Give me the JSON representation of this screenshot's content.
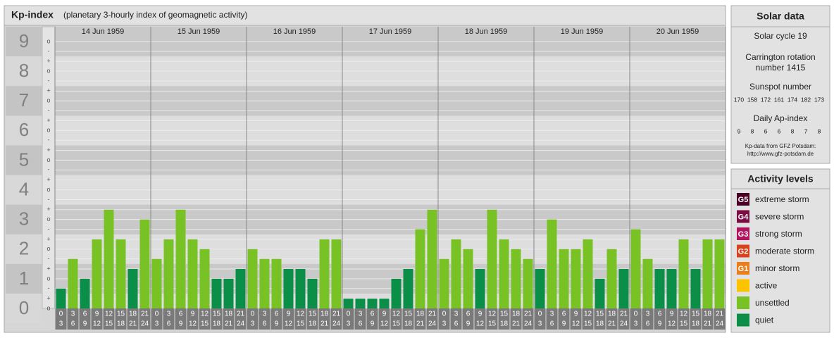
{
  "chart_data": {
    "type": "bar",
    "title": "Kp-index",
    "subtitle": "(planetary 3-hourly index of geomagnetic activity)",
    "ylim": [
      0,
      9.5
    ],
    "yticks": [
      0,
      1,
      2,
      3,
      4,
      5,
      6,
      7,
      8,
      9
    ],
    "minor_yticks": [
      {
        "value": 0,
        "label": "o"
      },
      {
        "value": 0.33,
        "label": "+"
      },
      {
        "value": 0.67,
        "label": "-"
      },
      {
        "value": 1,
        "label": "o"
      },
      {
        "value": 1.33,
        "label": "+"
      },
      {
        "value": 1.67,
        "label": "-"
      },
      {
        "value": 2,
        "label": "o"
      },
      {
        "value": 2.33,
        "label": "+"
      },
      {
        "value": 2.67,
        "label": "-"
      },
      {
        "value": 3,
        "label": "o"
      },
      {
        "value": 3.33,
        "label": "+"
      },
      {
        "value": 3.67,
        "label": "-"
      },
      {
        "value": 4,
        "label": "o"
      },
      {
        "value": 4.33,
        "label": "+"
      },
      {
        "value": 4.67,
        "label": "-"
      },
      {
        "value": 5,
        "label": "o"
      },
      {
        "value": 5.33,
        "label": "+"
      },
      {
        "value": 5.67,
        "label": "-"
      },
      {
        "value": 6,
        "label": "o"
      },
      {
        "value": 6.33,
        "label": "+"
      },
      {
        "value": 6.67,
        "label": "-"
      },
      {
        "value": 7,
        "label": "o"
      },
      {
        "value": 7.33,
        "label": "+"
      },
      {
        "value": 7.67,
        "label": "-"
      },
      {
        "value": 8,
        "label": "o"
      },
      {
        "value": 8.33,
        "label": "+"
      },
      {
        "value": 8.67,
        "label": "-"
      },
      {
        "value": 9,
        "label": "o"
      }
    ],
    "slots": [
      {
        "start": "0",
        "end": "3"
      },
      {
        "start": "3",
        "end": "6"
      },
      {
        "start": "6",
        "end": "9"
      },
      {
        "start": "9",
        "end": "12"
      },
      {
        "start": "12",
        "end": "15"
      },
      {
        "start": "15",
        "end": "18"
      },
      {
        "start": "18",
        "end": "21"
      },
      {
        "start": "21",
        "end": "24"
      }
    ],
    "days": [
      {
        "date": "14 Jun 1959",
        "values": [
          0.67,
          1.67,
          1,
          2.33,
          3.33,
          2.33,
          1.33,
          3
        ],
        "colors": [
          "#0b8f48",
          "#78c225",
          "#0b8f48",
          "#78c225",
          "#78c225",
          "#78c225",
          "#0b8f48",
          "#78c225"
        ]
      },
      {
        "date": "15 Jun 1959",
        "values": [
          1.67,
          2.33,
          3.33,
          2.33,
          2,
          1,
          1,
          1.33
        ],
        "colors": [
          "#78c225",
          "#78c225",
          "#78c225",
          "#78c225",
          "#78c225",
          "#0b8f48",
          "#0b8f48",
          "#0b8f48"
        ]
      },
      {
        "date": "16 Jun 1959",
        "values": [
          2,
          1.67,
          1.67,
          1.33,
          1.33,
          1,
          2.33,
          2.33
        ],
        "colors": [
          "#78c225",
          "#78c225",
          "#78c225",
          "#0b8f48",
          "#0b8f48",
          "#0b8f48",
          "#78c225",
          "#78c225"
        ]
      },
      {
        "date": "17 Jun 1959",
        "values": [
          0.33,
          0.33,
          0.33,
          0.33,
          1,
          1.33,
          2.67,
          3.33
        ],
        "colors": [
          "#0b8f48",
          "#0b8f48",
          "#0b8f48",
          "#0b8f48",
          "#0b8f48",
          "#0b8f48",
          "#78c225",
          "#78c225"
        ]
      },
      {
        "date": "18 Jun 1959",
        "values": [
          1.67,
          2.33,
          2,
          1.33,
          3.33,
          2.33,
          2,
          1.67
        ],
        "colors": [
          "#78c225",
          "#78c225",
          "#78c225",
          "#0b8f48",
          "#78c225",
          "#78c225",
          "#78c225",
          "#78c225"
        ]
      },
      {
        "date": "19 Jun 1959",
        "values": [
          1.33,
          3,
          2,
          2,
          2.33,
          1,
          2,
          1.33
        ],
        "colors": [
          "#0b8f48",
          "#78c225",
          "#78c225",
          "#78c225",
          "#78c225",
          "#0b8f48",
          "#78c225",
          "#0b8f48"
        ]
      },
      {
        "date": "20 Jun 1959",
        "values": [
          2.67,
          1.67,
          1.33,
          1.33,
          2.33,
          1.33,
          2.33,
          2.33
        ],
        "colors": [
          "#78c225",
          "#78c225",
          "#0b8f48",
          "#0b8f48",
          "#78c225",
          "#0b8f48",
          "#78c225",
          "#78c225"
        ]
      }
    ]
  },
  "solar_data": {
    "title": "Solar data",
    "cycle": "Solar cycle 19",
    "carrington": [
      "Carrington rotation",
      "number 1415"
    ],
    "sunspot_title": "Sunspot number",
    "sunspot": [
      170,
      158,
      172,
      161,
      174,
      182,
      173
    ],
    "ap_title": "Daily Ap-index",
    "ap": [
      9,
      8,
      6,
      6,
      8,
      7,
      8
    ],
    "source": "Kp-data from GFZ Potsdam:",
    "url": "http://www.gfz-potsdam.de"
  },
  "activity_levels": {
    "title": "Activity levels",
    "levels": [
      {
        "code": "G5",
        "name": "extreme storm",
        "color": "#4a0026"
      },
      {
        "code": "G4",
        "name": "severe storm",
        "color": "#7c0c44"
      },
      {
        "code": "G3",
        "name": "strong storm",
        "color": "#b3125e"
      },
      {
        "code": "G2",
        "name": "moderate storm",
        "color": "#d9401c"
      },
      {
        "code": "G1",
        "name": "minor storm",
        "color": "#ea7d1c"
      },
      {
        "name": "active",
        "color": "#fcc400"
      },
      {
        "name": "unsettled",
        "color": "#78c225"
      },
      {
        "name": "quiet",
        "color": "#0b8f48"
      }
    ]
  }
}
